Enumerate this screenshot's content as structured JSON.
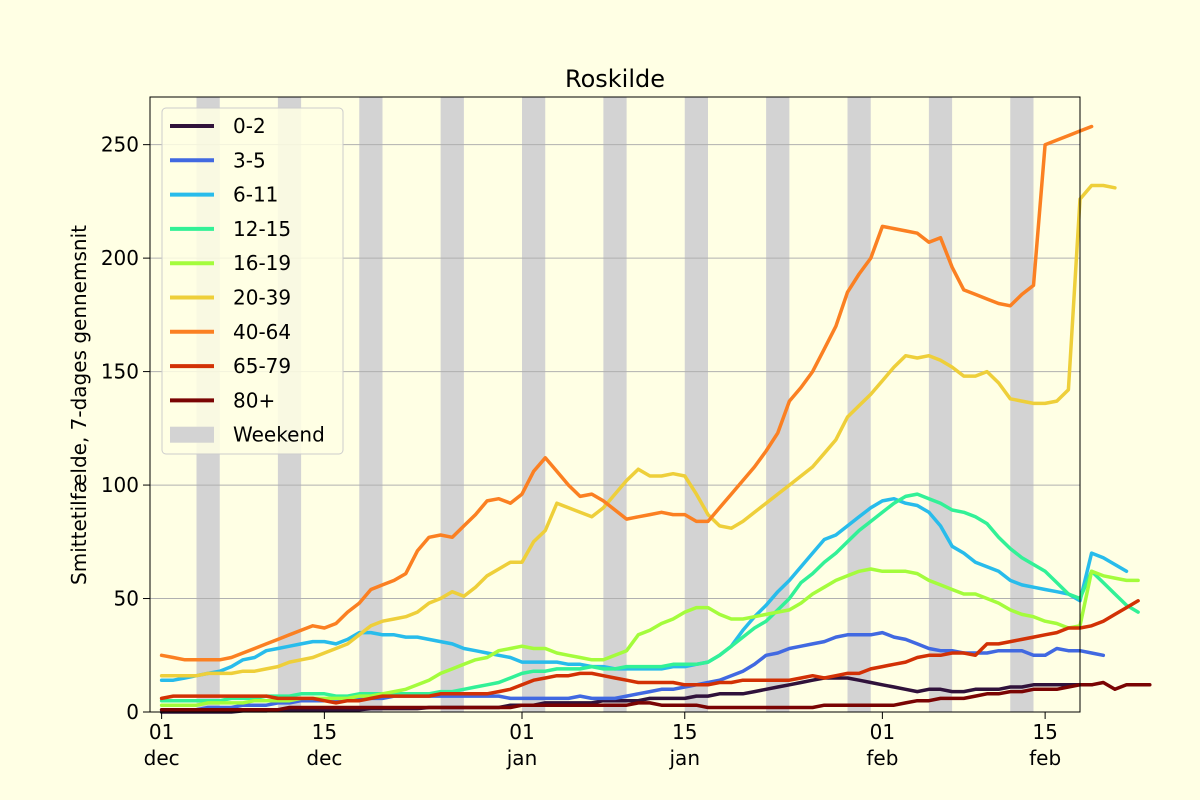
{
  "chart_data": {
    "type": "line",
    "title": "Roskilde",
    "xlabel": "",
    "ylabel": "Smittetilfælde, 7-dages gennemsnit",
    "x_unit": "date",
    "x_start": "2021-12-01",
    "xlim": [
      "2021-11-30",
      "2022-02-18"
    ],
    "ylim": [
      0,
      271
    ],
    "yticks": [
      0,
      50,
      100,
      150,
      200,
      250
    ],
    "grid": "horizontal",
    "legend_position": "top-left",
    "xticks": [
      {
        "date": "2021-12-01",
        "day": "01",
        "month": "dec"
      },
      {
        "date": "2021-12-15",
        "day": "15",
        "month": "dec"
      },
      {
        "date": "2022-01-01",
        "day": "01",
        "month": "jan"
      },
      {
        "date": "2022-01-15",
        "day": "15",
        "month": "jan"
      },
      {
        "date": "2022-02-01",
        "day": "01",
        "month": "feb"
      },
      {
        "date": "2022-02-15",
        "day": "15",
        "month": "feb"
      }
    ],
    "weekend_label": "Weekend",
    "weekend_color": "#d3d3d3",
    "weekends": [
      [
        "2021-12-04",
        "2021-12-06"
      ],
      [
        "2021-12-11",
        "2021-12-13"
      ],
      [
        "2021-12-18",
        "2021-12-20"
      ],
      [
        "2021-12-25",
        "2021-12-27"
      ],
      [
        "2022-01-01",
        "2022-01-03"
      ],
      [
        "2022-01-08",
        "2022-01-10"
      ],
      [
        "2022-01-15",
        "2022-01-17"
      ],
      [
        "2022-01-22",
        "2022-01-24"
      ],
      [
        "2022-01-29",
        "2022-01-31"
      ],
      [
        "2022-02-05",
        "2022-02-07"
      ],
      [
        "2022-02-12",
        "2022-02-14"
      ],
      [
        "2022-02-19",
        "2022-02-21"
      ]
    ],
    "series": [
      {
        "name": "0-2",
        "color": "#30123b",
        "values": [
          0,
          0,
          0,
          0,
          0,
          0,
          0,
          0.5,
          0.5,
          0.5,
          1,
          1,
          1,
          1,
          1,
          1,
          1,
          1,
          1.5,
          1.5,
          1.5,
          1.5,
          1.5,
          2,
          2,
          2,
          2,
          2,
          2,
          2,
          3,
          3,
          3,
          4,
          4,
          4,
          4,
          4,
          5,
          5,
          5,
          5,
          6,
          6,
          6,
          6,
          7,
          7,
          8,
          8,
          8,
          9,
          10,
          11,
          12,
          13,
          14,
          15,
          15,
          15,
          14,
          13,
          12,
          11,
          10,
          9,
          10,
          10,
          9,
          9,
          10,
          10,
          10,
          11,
          11,
          12,
          12,
          12,
          12,
          12,
          12
        ]
      },
      {
        "name": "3-5",
        "color": "#4169e1",
        "values": [
          1,
          1,
          1,
          1,
          2,
          2,
          2,
          3,
          3,
          3,
          4,
          4,
          5,
          5,
          5,
          5,
          6,
          6,
          6,
          6,
          7,
          7,
          7,
          7,
          7,
          7,
          7,
          7,
          7,
          7,
          6,
          6,
          6,
          6,
          6,
          6,
          7,
          6,
          6,
          6,
          7,
          8,
          9,
          10,
          10,
          11,
          12,
          13,
          14,
          16,
          18,
          21,
          25,
          26,
          28,
          29,
          30,
          31,
          33,
          34,
          34,
          34,
          35,
          33,
          32,
          30,
          28,
          27,
          27,
          26,
          26,
          26,
          27,
          27,
          27,
          25,
          25,
          28,
          27,
          27,
          26,
          25
        ]
      },
      {
        "name": "6-11",
        "color": "#28bceb",
        "values": [
          14,
          14,
          15,
          16,
          17,
          18,
          20,
          23,
          24,
          27,
          28,
          29,
          30,
          31,
          31,
          30,
          32,
          35,
          35,
          34,
          34,
          33,
          33,
          32,
          31,
          30,
          28,
          27,
          26,
          25,
          24,
          22,
          22,
          22,
          22,
          21,
          21,
          20,
          20,
          19,
          19,
          19,
          19,
          19,
          20,
          20,
          21,
          22,
          25,
          29,
          36,
          42,
          47,
          53,
          58,
          64,
          70,
          76,
          78,
          82,
          86,
          90,
          93,
          94,
          92,
          91,
          88,
          82,
          73,
          70,
          66,
          64,
          62,
          58,
          56,
          55,
          54,
          53,
          52,
          49,
          70,
          68,
          65,
          62
        ]
      },
      {
        "name": "12-15",
        "color": "#32f197",
        "values": [
          5,
          5,
          5,
          5,
          5,
          5,
          6,
          6,
          6,
          7,
          7,
          7,
          8,
          8,
          8,
          7,
          7,
          8,
          8,
          8,
          8,
          8,
          8,
          8,
          9,
          9,
          10,
          11,
          12,
          13,
          15,
          17,
          18,
          18,
          19,
          19,
          19,
          20,
          19,
          19,
          20,
          20,
          20,
          20,
          21,
          21,
          21,
          22,
          25,
          29,
          33,
          37,
          40,
          45,
          50,
          57,
          61,
          66,
          70,
          75,
          80,
          84,
          88,
          92,
          95,
          96,
          94,
          92,
          89,
          88,
          86,
          83,
          77,
          72,
          68,
          65,
          62,
          57,
          52,
          50,
          62,
          57,
          52,
          47,
          44
        ]
      },
      {
        "name": "16-19",
        "color": "#a4fc3c",
        "values": [
          3,
          3,
          3,
          3,
          4,
          4,
          4,
          4,
          5,
          5,
          5,
          5,
          6,
          6,
          6,
          6,
          6,
          7,
          7,
          8,
          9,
          10,
          12,
          14,
          17,
          19,
          21,
          23,
          24,
          27,
          28,
          29,
          28,
          28,
          26,
          25,
          24,
          23,
          23,
          25,
          27,
          34,
          36,
          39,
          41,
          44,
          46,
          46,
          43,
          41,
          41,
          42,
          43,
          44,
          45,
          48,
          52,
          55,
          58,
          60,
          62,
          63,
          62,
          62,
          62,
          61,
          58,
          56,
          54,
          52,
          52,
          50,
          48,
          45,
          43,
          42,
          40,
          39,
          37,
          38,
          62,
          60,
          59,
          58,
          58
        ]
      },
      {
        "name": "20-39",
        "color": "#eecf3a",
        "values": [
          16,
          16,
          16,
          16,
          17,
          17,
          17,
          18,
          18,
          19,
          20,
          22,
          23,
          24,
          26,
          28,
          30,
          34,
          38,
          40,
          41,
          42,
          44,
          48,
          50,
          53,
          51,
          55,
          60,
          63,
          66,
          66,
          75,
          80,
          92,
          90,
          88,
          86,
          90,
          96,
          102,
          107,
          104,
          104,
          105,
          104,
          96,
          87,
          82,
          81,
          84,
          88,
          92,
          96,
          100,
          104,
          108,
          114,
          120,
          130,
          135,
          140,
          146,
          152,
          157,
          156,
          157,
          155,
          152,
          148,
          148,
          150,
          145,
          138,
          137,
          136,
          136,
          137,
          142,
          226,
          232,
          232,
          231
        ]
      },
      {
        "name": "40-64",
        "color": "#fb8022",
        "values": [
          25,
          24,
          23,
          23,
          23,
          23,
          24,
          26,
          28,
          30,
          32,
          34,
          36,
          38,
          37,
          39,
          44,
          48,
          54,
          56,
          58,
          61,
          71,
          77,
          78,
          77,
          82,
          87,
          93,
          94,
          92,
          96,
          106,
          112,
          106,
          100,
          95,
          96,
          93,
          89,
          85,
          86,
          87,
          88,
          87,
          87,
          84,
          84,
          90,
          96,
          102,
          108,
          115,
          123,
          137,
          143,
          150,
          160,
          170,
          185,
          193,
          200,
          214,
          213,
          212,
          211,
          207,
          209,
          196,
          186,
          184,
          182,
          180,
          179,
          184,
          188,
          250,
          252,
          254,
          256,
          258
        ]
      },
      {
        "name": "65-79",
        "color": "#d23105",
        "values": [
          6,
          7,
          7,
          7,
          7,
          7,
          7,
          7,
          7,
          7,
          6,
          6,
          6,
          6,
          5,
          4,
          5,
          5,
          6,
          7,
          7,
          7,
          7,
          7,
          8,
          8,
          8,
          8,
          8,
          9,
          10,
          12,
          14,
          15,
          16,
          16,
          17,
          17,
          16,
          15,
          14,
          13,
          13,
          13,
          13,
          12,
          12,
          12,
          13,
          13,
          14,
          14,
          14,
          14,
          14,
          15,
          16,
          15,
          16,
          17,
          17,
          19,
          20,
          21,
          22,
          24,
          25,
          25,
          26,
          26,
          25,
          30,
          30,
          31,
          32,
          33,
          34,
          35,
          37,
          37,
          38,
          40,
          43,
          46,
          49
        ]
      },
      {
        "name": "80+",
        "color": "#7a0403",
        "values": [
          1,
          1,
          1,
          1,
          1,
          1,
          1,
          1,
          1,
          1,
          1,
          2,
          2,
          2,
          2,
          2,
          2,
          2,
          2,
          2,
          2,
          2,
          2,
          2,
          2,
          2,
          2,
          2,
          2,
          2,
          2,
          3,
          3,
          3,
          3,
          3,
          3,
          3,
          3,
          3,
          3,
          4,
          4,
          3,
          3,
          3,
          3,
          2,
          2,
          2,
          2,
          2,
          2,
          2,
          2,
          2,
          2,
          3,
          3,
          3,
          3,
          3,
          3,
          3,
          4,
          5,
          5,
          6,
          6,
          6,
          7,
          8,
          8,
          9,
          9,
          10,
          10,
          10,
          11,
          12,
          12,
          13,
          10,
          12,
          12,
          12
        ]
      }
    ]
  }
}
